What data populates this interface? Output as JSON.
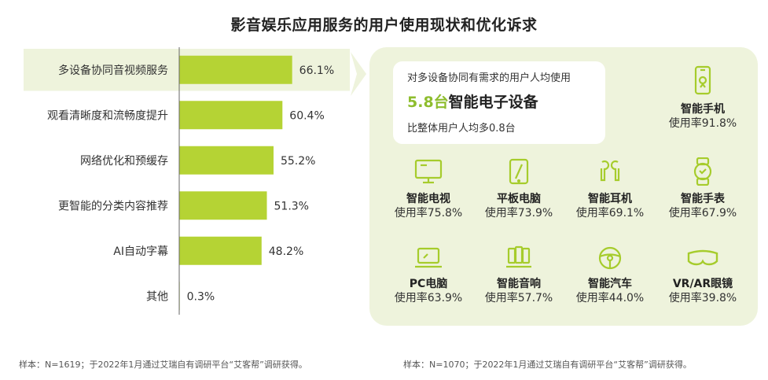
{
  "title": "影音娱乐应用服务的用户使用现状和优化诉求",
  "chart_data": {
    "type": "bar",
    "orientation": "horizontal",
    "categories": [
      "多设备协同音视频服务",
      "观看清晰度和流畅度提升",
      "网络优化和预缓存",
      "更智能的分类内容推荐",
      "AI自动字幕",
      "其他"
    ],
    "values": [
      66.1,
      60.4,
      55.2,
      51.3,
      48.2,
      0.3
    ],
    "value_labels": [
      "66.1%",
      "60.4%",
      "55.2%",
      "51.3%",
      "48.2%",
      "0.3%"
    ],
    "highlight_index": 0,
    "bar_color": "#b5d334",
    "highlight_color": "#eef3dc",
    "grid": false,
    "xlim": [
      0,
      100
    ]
  },
  "left_note": "样本：N=1619；于2022年1月通过艾瑞自有调研平台“艾客帮”调研获得。",
  "right_note": "样本：N=1070；于2022年1月通过艾瑞自有调研平台“艾客帮”调研获得。",
  "callout": {
    "line1": "对多设备协同有需求的用户人均使用",
    "number": "5.8台",
    "text": "智能电子设备",
    "line3": "比整体用户人均多0.8台"
  },
  "devices": [
    {
      "name": "智能手机",
      "rate": "使用率91.8%",
      "icon": "smartphone-icon"
    },
    {
      "name": "智能电视",
      "rate": "使用率75.8%",
      "icon": "tv-icon"
    },
    {
      "name": "平板电脑",
      "rate": "使用率73.9%",
      "icon": "tablet-icon"
    },
    {
      "name": "智能耳机",
      "rate": "使用率69.1%",
      "icon": "earbuds-icon"
    },
    {
      "name": "智能手表",
      "rate": "使用率67.9%",
      "icon": "watch-icon"
    },
    {
      "name": "PC电脑",
      "rate": "使用率63.9%",
      "icon": "laptop-icon"
    },
    {
      "name": "智能音响",
      "rate": "使用率57.7%",
      "icon": "speaker-icon"
    },
    {
      "name": "智能汽车",
      "rate": "使用率44.0%",
      "icon": "steering-wheel-icon"
    },
    {
      "name": "VR/AR眼镜",
      "rate": "使用率39.8%",
      "icon": "vr-glasses-icon"
    }
  ],
  "colors": {
    "accent": "#8ebd2e",
    "panel": "#eef3dc",
    "icon": "#a6cc2c"
  }
}
